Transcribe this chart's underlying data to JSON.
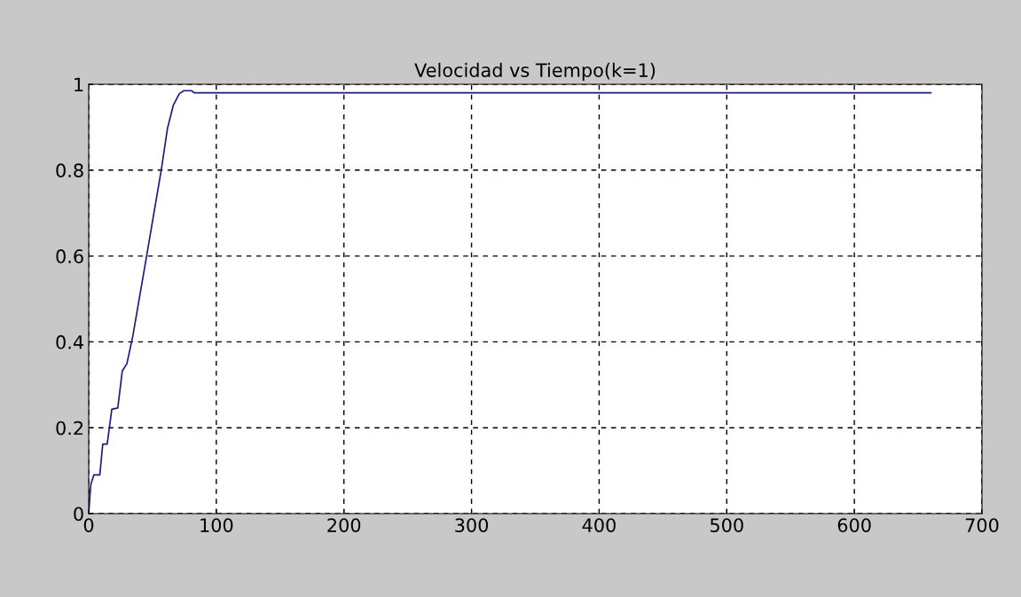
{
  "chart_data": {
    "type": "line",
    "title": "Velocidad vs Tiempo(k=1)",
    "series": [
      {
        "color": "#1a1a80",
        "x": [
          0,
          1.6,
          4.0,
          8.7,
          11,
          14.5,
          18.1,
          22.8,
          26.3,
          29.9,
          34.6,
          45.2,
          56.9,
          61.7,
          66.3,
          71,
          74.6,
          80.5,
          82.8,
          200,
          400,
          660
        ],
        "values": [
          0,
          0.067,
          0.09,
          0.09,
          0.162,
          0.162,
          0.243,
          0.246,
          0.332,
          0.349,
          0.414,
          0.597,
          0.801,
          0.897,
          0.951,
          0.978,
          0.985,
          0.985,
          0.98,
          0.98,
          0.98,
          0.98
        ]
      }
    ],
    "xlim": [
      0,
      700
    ],
    "xticks": [
      0,
      100,
      200,
      300,
      400,
      500,
      600,
      700
    ],
    "ylim": [
      0,
      1
    ],
    "yticks": [
      0,
      0.2,
      0.4,
      0.6,
      0.8,
      1
    ],
    "grid": true,
    "line_style": "solid"
  }
}
